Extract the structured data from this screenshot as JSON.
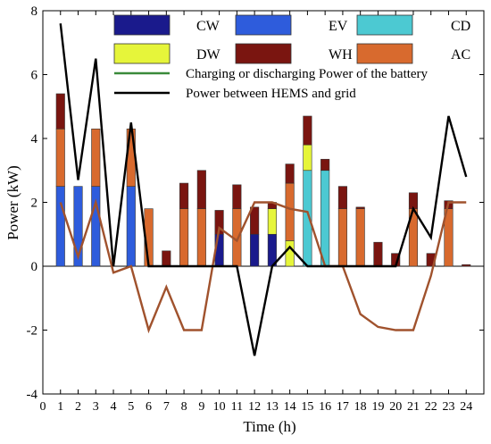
{
  "chart_data": {
    "type": "bar",
    "stacked": true,
    "xlabel": "Time (h)",
    "ylabel": "Power (kW)",
    "xlim": [
      0,
      25
    ],
    "ylim": [
      -4,
      8
    ],
    "xticks": [
      0,
      1,
      2,
      3,
      4,
      5,
      6,
      7,
      8,
      9,
      10,
      11,
      12,
      13,
      14,
      15,
      16,
      17,
      18,
      19,
      20,
      21,
      22,
      23,
      24
    ],
    "yticks": [
      -4,
      -2,
      0,
      2,
      4,
      6,
      8
    ],
    "grid": false,
    "legend_position": "top",
    "x": [
      1,
      2,
      3,
      4,
      5,
      6,
      7,
      8,
      9,
      10,
      11,
      12,
      13,
      14,
      15,
      16,
      17,
      18,
      19,
      20,
      21,
      22,
      23,
      24
    ],
    "bar_series": [
      {
        "name": "CW",
        "color": "#1a1a8c",
        "values": [
          0,
          0,
          0,
          0,
          0,
          0,
          0,
          0,
          0,
          1.0,
          0,
          1.0,
          1.0,
          0,
          0,
          0,
          0,
          0,
          0,
          0,
          0,
          0,
          0,
          0
        ]
      },
      {
        "name": "EV",
        "color": "#2e5cdc",
        "values": [
          2.5,
          2.5,
          2.5,
          0,
          2.5,
          0,
          0,
          0,
          0,
          0,
          0,
          0,
          0,
          0,
          0,
          0,
          0,
          0,
          0,
          0,
          0,
          0,
          0,
          0
        ]
      },
      {
        "name": "CD",
        "color": "#4cc9d2",
        "values": [
          0,
          0,
          0,
          0,
          0,
          0,
          0,
          0,
          0,
          0,
          0,
          0,
          0,
          0,
          3.0,
          3.0,
          0,
          0,
          0,
          0,
          0,
          0,
          0,
          0
        ]
      },
      {
        "name": "DW",
        "color": "#e6f53a",
        "values": [
          0,
          0,
          0,
          0,
          0,
          0,
          0,
          0,
          0,
          0,
          0,
          0,
          0.8,
          0.8,
          0.8,
          0,
          0,
          0,
          0,
          0,
          0,
          0,
          0,
          0
        ]
      },
      {
        "name": "AC",
        "color": "#d86a2e",
        "values": [
          1.8,
          0,
          1.8,
          0,
          1.8,
          1.8,
          0,
          1.8,
          1.8,
          0,
          1.8,
          0,
          0,
          1.8,
          0,
          0,
          1.8,
          1.8,
          0,
          0,
          1.8,
          0,
          1.8,
          0
        ]
      },
      {
        "name": "WH",
        "color": "#7a1510",
        "values": [
          1.1,
          0,
          0,
          0,
          0,
          0,
          0.48,
          0.8,
          1.2,
          0.75,
          0.75,
          0.85,
          0.2,
          0.6,
          0.9,
          0.35,
          0.7,
          0.05,
          0.75,
          0.4,
          0.5,
          0.4,
          0.25,
          0.05
        ]
      }
    ],
    "line_series": [
      {
        "name": "Charging or discharging Power of the battery",
        "color": "#a0522d",
        "values": [
          2.0,
          0.3,
          2.0,
          -0.2,
          0,
          -2.0,
          -0.65,
          -2.0,
          -2.0,
          1.2,
          0.8,
          2.0,
          2.0,
          1.8,
          1.7,
          0,
          0,
          -1.5,
          -1.9,
          -2.0,
          -2.0,
          -0.3,
          2.0,
          2.0
        ]
      },
      {
        "name": "Power between HEMS and grid",
        "color": "#000000",
        "values": [
          7.6,
          2.7,
          6.5,
          0,
          4.5,
          0,
          0,
          0,
          0,
          0,
          0,
          -2.8,
          0,
          0.6,
          0,
          0,
          0,
          0,
          0,
          0,
          1.8,
          0.9,
          4.7,
          2.8
        ]
      }
    ],
    "legend_rows": [
      [
        "CW",
        "EV",
        "CD"
      ],
      [
        "DW",
        "WH",
        "AC"
      ]
    ],
    "legend_line_colors": [
      "#3a8a3a",
      "#000000"
    ]
  }
}
